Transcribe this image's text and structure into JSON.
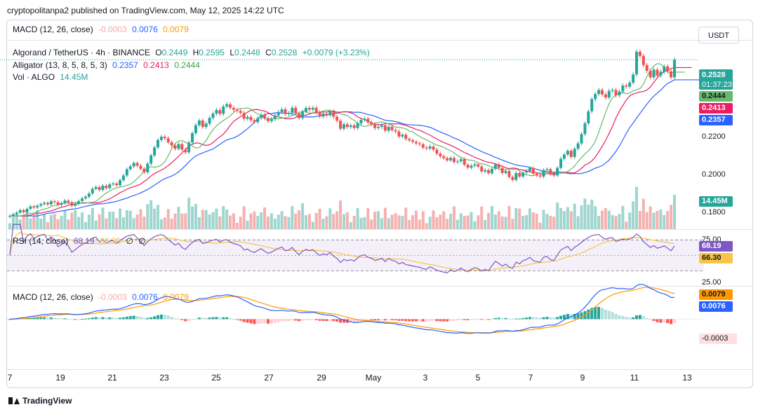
{
  "publish_line": "cryptopolitanpa2 published on TradingView.com, May 12, 2025 14:22 UTC",
  "brand": "TradingView",
  "icons": [
    "tradingview-logo-icon"
  ],
  "colors": {
    "up": "#26a69a",
    "down": "#ef5350",
    "sma_fast": "#43a047",
    "jaw": "#2962ff",
    "teeth": "#e91e63",
    "lips": "#66bb6a",
    "rsi": "#7e57c2",
    "rsi_ma": "#f7c548",
    "macd": "#2962ff",
    "signal": "#ff9800"
  },
  "top_macd": {
    "name": "MACD (12, 26, close)",
    "hist": "-0.0003",
    "macd": "0.0076",
    "signal": "0.0079"
  },
  "main": {
    "symbol": "Algorand / TetherUS · 4h · BINANCE",
    "o_label": "O",
    "o": "0.2449",
    "h_label": "H",
    "h": "0.2595",
    "l_label": "L",
    "l": "0.2448",
    "c_label": "C",
    "c": "0.2528",
    "change": "+0.0079 (+3.23%)",
    "alligator_name": "Alligator (13, 8, 5, 8, 5, 3)",
    "jaw": "0.2357",
    "teeth": "0.2413",
    "lips": "0.2444",
    "vol_name": "Vol · ALGO",
    "vol": "14.45M",
    "currency": "USDT",
    "price_badge": "0.2528",
    "countdown": "01:37:23",
    "axis_labels": [
      "0.2200",
      "0.2000",
      "0.1800"
    ]
  },
  "rsi": {
    "name": "RSI (14, close)",
    "value": "68.19",
    "ma": "66.30",
    "extra1": "∅",
    "extra2": "∅",
    "level_high": "75.00",
    "level_low": "25.00"
  },
  "macd": {
    "name": "MACD (12, 26, close)",
    "hist": "-0.0003",
    "macd": "0.0076",
    "signal": "0.0079"
  },
  "x_axis": [
    "7",
    "19",
    "21",
    "23",
    "25",
    "27",
    "29",
    "May",
    "3",
    "5",
    "7",
    "9",
    "11",
    "13"
  ],
  "chart_data": {
    "type": "candlestick",
    "timeframe": "4h",
    "price_ylim": [
      0.177,
      0.262
    ],
    "candles_close": [
      0.1826,
      0.1834,
      0.1841,
      0.1852,
      0.1843,
      0.1858,
      0.1869,
      0.1864,
      0.1872,
      0.1879,
      0.1885,
      0.1878,
      0.1892,
      0.1888,
      0.1876,
      0.1884,
      0.1895,
      0.1887,
      0.1872,
      0.1881,
      0.1893,
      0.1905,
      0.1912,
      0.1927,
      0.1948,
      0.1956,
      0.1943,
      0.1962,
      0.1951,
      0.1968,
      0.1972,
      0.1964,
      0.1987,
      0.2008,
      0.2036,
      0.2049,
      0.2064,
      0.2052,
      0.2038,
      0.2022,
      0.2061,
      0.2098,
      0.2134,
      0.2167,
      0.2182,
      0.2175,
      0.2157,
      0.2143,
      0.2128,
      0.2149,
      0.2124,
      0.2112,
      0.2156,
      0.2198,
      0.2234,
      0.2255,
      0.2226,
      0.2241,
      0.2267,
      0.2286,
      0.2302,
      0.2285,
      0.2318,
      0.2328,
      0.2312,
      0.2303,
      0.2298,
      0.2289,
      0.2263,
      0.2271,
      0.2256,
      0.2248,
      0.2266,
      0.2281,
      0.2265,
      0.2252,
      0.2261,
      0.2278,
      0.2293,
      0.2305,
      0.2284,
      0.2289,
      0.2312,
      0.2287,
      0.2266,
      0.2294,
      0.2311,
      0.2304,
      0.2312,
      0.2292,
      0.2273,
      0.2286,
      0.2279,
      0.2296,
      0.2272,
      0.2254,
      0.2218,
      0.2238,
      0.2226,
      0.2233,
      0.2221,
      0.2242,
      0.2258,
      0.2263,
      0.2246,
      0.2238,
      0.2221,
      0.2226,
      0.2234,
      0.2209,
      0.2227,
      0.2212,
      0.2206,
      0.2183,
      0.2191,
      0.2172,
      0.2166,
      0.2159,
      0.2152,
      0.2148,
      0.2133,
      0.2129,
      0.2138,
      0.2124,
      0.2106,
      0.2094,
      0.2086,
      0.2076,
      0.2087,
      0.2068,
      0.2072,
      0.2081,
      0.2056,
      0.2043,
      0.2052,
      0.2058,
      0.2048,
      0.2026,
      0.2032,
      0.2018,
      0.2038,
      0.2057,
      0.2042,
      0.2019,
      0.2028,
      0.2001,
      0.1988,
      0.2019,
      0.2003,
      0.2021,
      0.2028,
      0.2041,
      0.2016,
      0.2008,
      0.2003,
      0.2032,
      0.2036,
      0.2014,
      0.2008,
      0.2042,
      0.2083,
      0.2102,
      0.2119,
      0.2091,
      0.2128,
      0.2152,
      0.2194,
      0.2242,
      0.2296,
      0.2351,
      0.2374,
      0.2392,
      0.2372,
      0.2358,
      0.2388,
      0.2392,
      0.2368,
      0.2385,
      0.2412,
      0.2407,
      0.2425,
      0.2462,
      0.2564,
      0.2545,
      0.2504,
      0.2478,
      0.2449,
      0.2483,
      0.2457,
      0.2474,
      0.2498,
      0.2476,
      0.2449,
      0.2528
    ],
    "volume_ylim": [
      0,
      48
    ],
    "rsi_ylim": [
      10,
      80
    ],
    "rsi_levels": [
      25,
      75
    ],
    "macd_ylim": [
      -0.0125,
      0.0075
    ]
  }
}
